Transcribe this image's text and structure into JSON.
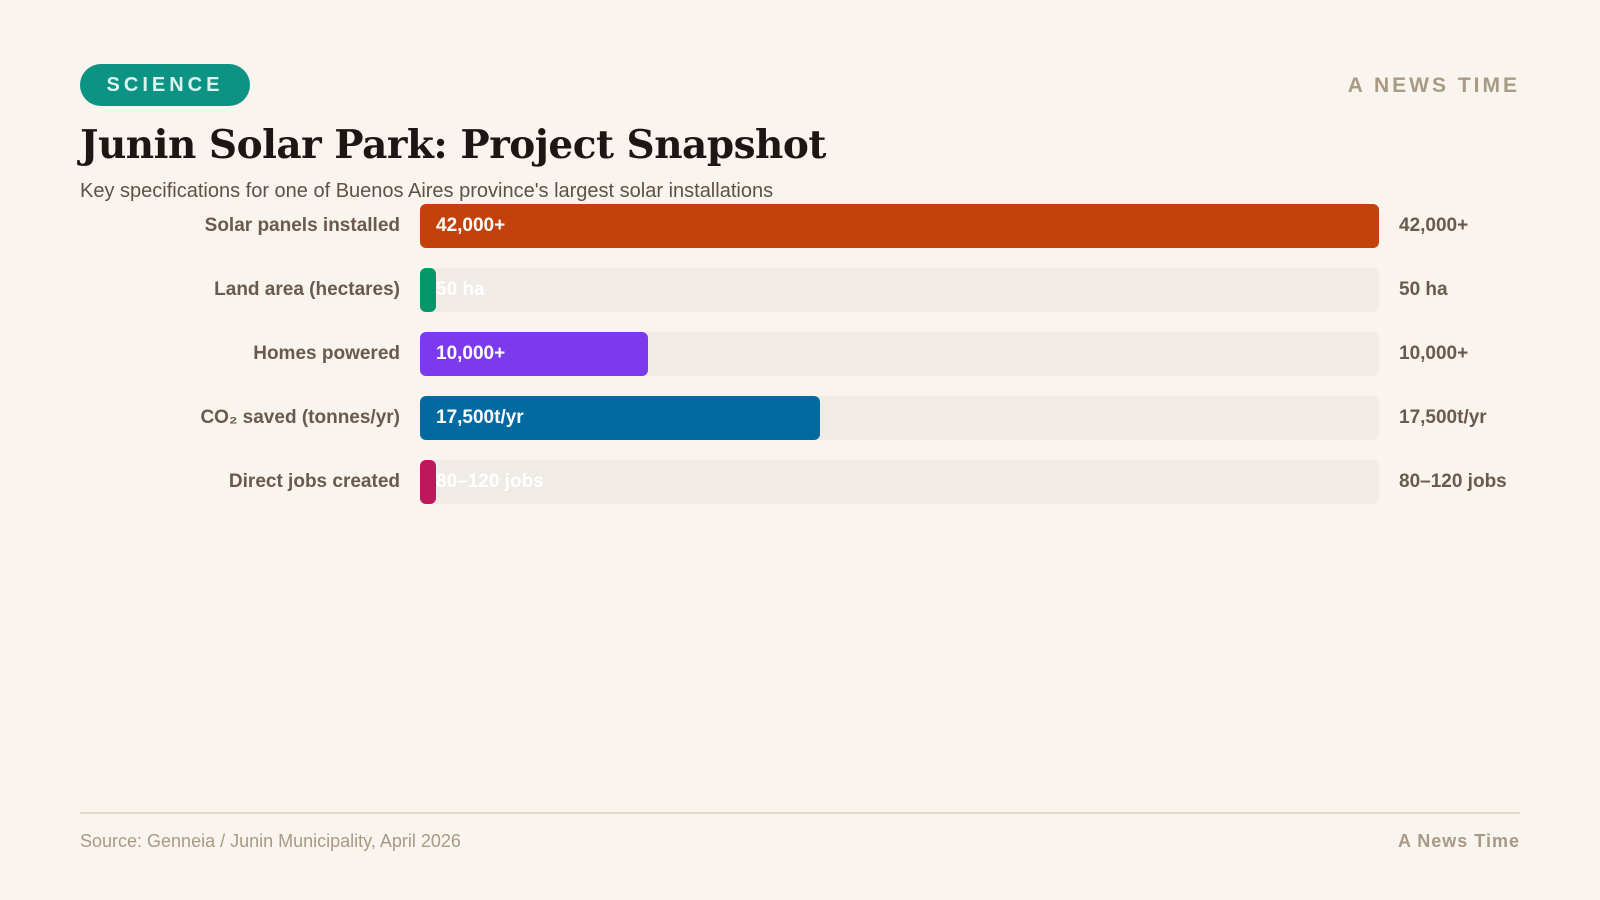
{
  "header": {
    "tag": "SCIENCE",
    "brand": "A NEWS TIME",
    "title": "Junin Solar Park: Project Snapshot",
    "subtitle": "Key specifications for one of Buenos Aires province's largest solar installations"
  },
  "chart_data": {
    "type": "bar",
    "orientation": "horizontal",
    "categories": [
      "Solar panels installed",
      "Land area (hectares)",
      "Homes powered",
      "CO₂ saved (tonnes/yr)",
      "Direct jobs created"
    ],
    "values": [
      42000,
      50,
      10000,
      17500,
      100
    ],
    "value_labels": [
      "42,000+",
      "50 ha",
      "10,000+",
      "17,500t/yr",
      "80–120 jobs"
    ],
    "colors": [
      "#c2410c",
      "#059669",
      "#7c3aed",
      "#0369a1",
      "#be185d"
    ],
    "xlim": [
      0,
      42000
    ],
    "grid": false
  },
  "footer": {
    "source": "Source: Genneia / Junin Municipality, April 2026",
    "brand": "A News Time"
  },
  "colors": {
    "background": "#f9f4ee",
    "tag": "#0d9384",
    "track": "#f0ebe4"
  }
}
